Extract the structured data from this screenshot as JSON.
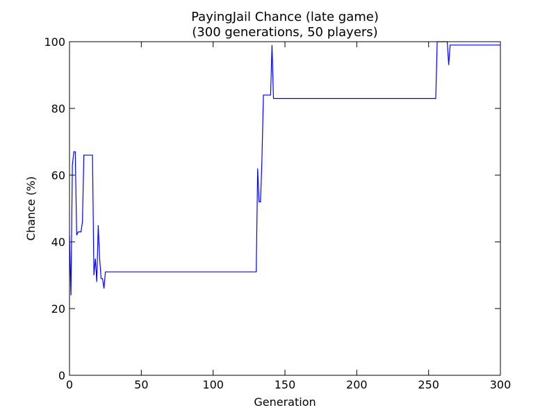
{
  "chart_data": {
    "type": "line",
    "title": "PayingJail Chance (late game)",
    "subtitle": "(300 generations, 50 players)",
    "xlabel": "Generation",
    "ylabel": "Chance (%)",
    "xlim": [
      0,
      300
    ],
    "ylim": [
      0,
      100
    ],
    "xticks": [
      "0",
      "50",
      "100",
      "150",
      "200",
      "250",
      "300"
    ],
    "yticks": [
      "0",
      "20",
      "40",
      "60",
      "80",
      "100"
    ],
    "grid": false,
    "line_color": "#0000ff",
    "series": [
      {
        "x": [
          0,
          1,
          2,
          3,
          4,
          5,
          6,
          7,
          8,
          9,
          10,
          11,
          12,
          13,
          14,
          15,
          16,
          17,
          18,
          19,
          20,
          21,
          22,
          23,
          24,
          25,
          26,
          27,
          28,
          29,
          30,
          130,
          131,
          132,
          133,
          134,
          135,
          136,
          137,
          138,
          139,
          140,
          141,
          142,
          143,
          150,
          200,
          250,
          255,
          256,
          257,
          258,
          259,
          260,
          261,
          262,
          263,
          264,
          265,
          266,
          267,
          270,
          280,
          290,
          300
        ],
        "y": [
          42,
          24,
          63,
          67,
          67,
          42,
          43,
          43,
          43,
          46,
          66,
          66,
          66,
          66,
          66,
          66,
          66,
          30,
          35,
          28,
          45,
          35,
          29,
          29,
          26,
          31,
          31,
          31,
          31,
          31,
          31,
          31,
          62,
          52,
          52,
          65,
          84,
          84,
          84,
          84,
          84,
          84,
          99,
          83,
          83,
          83,
          83,
          83,
          83,
          100,
          100,
          100,
          100,
          100,
          100,
          100,
          100,
          93,
          99,
          99,
          99,
          99,
          99,
          99,
          99
        ]
      }
    ]
  }
}
